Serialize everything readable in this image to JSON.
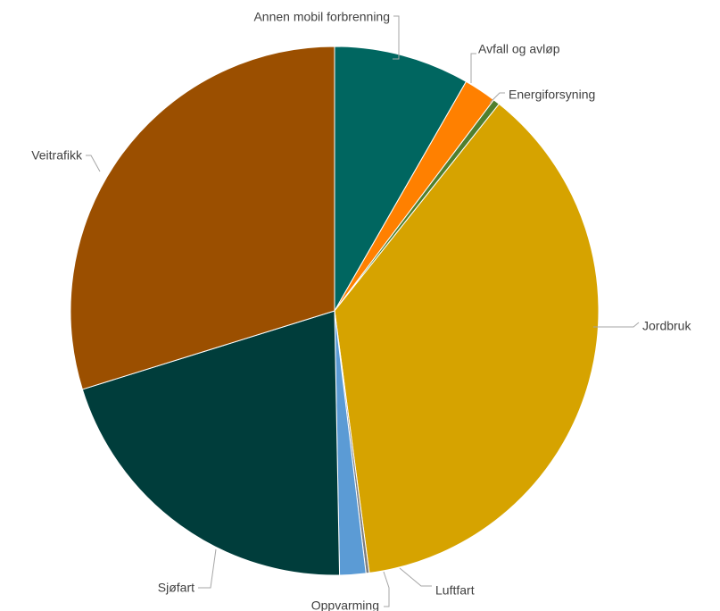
{
  "chart_data": {
    "type": "pie",
    "title": "",
    "start_angle_deg": 0,
    "direction": "clockwise",
    "legend": "none",
    "slices": [
      {
        "label": "Annen mobil forbrenning",
        "value": 8.3,
        "color": "#006660"
      },
      {
        "label": "Avfall og avløp",
        "value": 2.0,
        "color": "#ff8000"
      },
      {
        "label": "Energiforsyning",
        "value": 0.4,
        "color": "#4f7f2f"
      },
      {
        "label": "Jordbruk",
        "value": 37.2,
        "color": "#d6a300"
      },
      {
        "label": "Luftfart",
        "value": 0.2,
        "color": "#7f7f7f"
      },
      {
        "label": "Oppvarming",
        "value": 1.6,
        "color": "#5b9bd5"
      },
      {
        "label": "Sjøfart",
        "value": 20.5,
        "color": "#003d3b"
      },
      {
        "label": "Veitrafikk",
        "value": 29.8,
        "color": "#9b4f00"
      }
    ]
  }
}
